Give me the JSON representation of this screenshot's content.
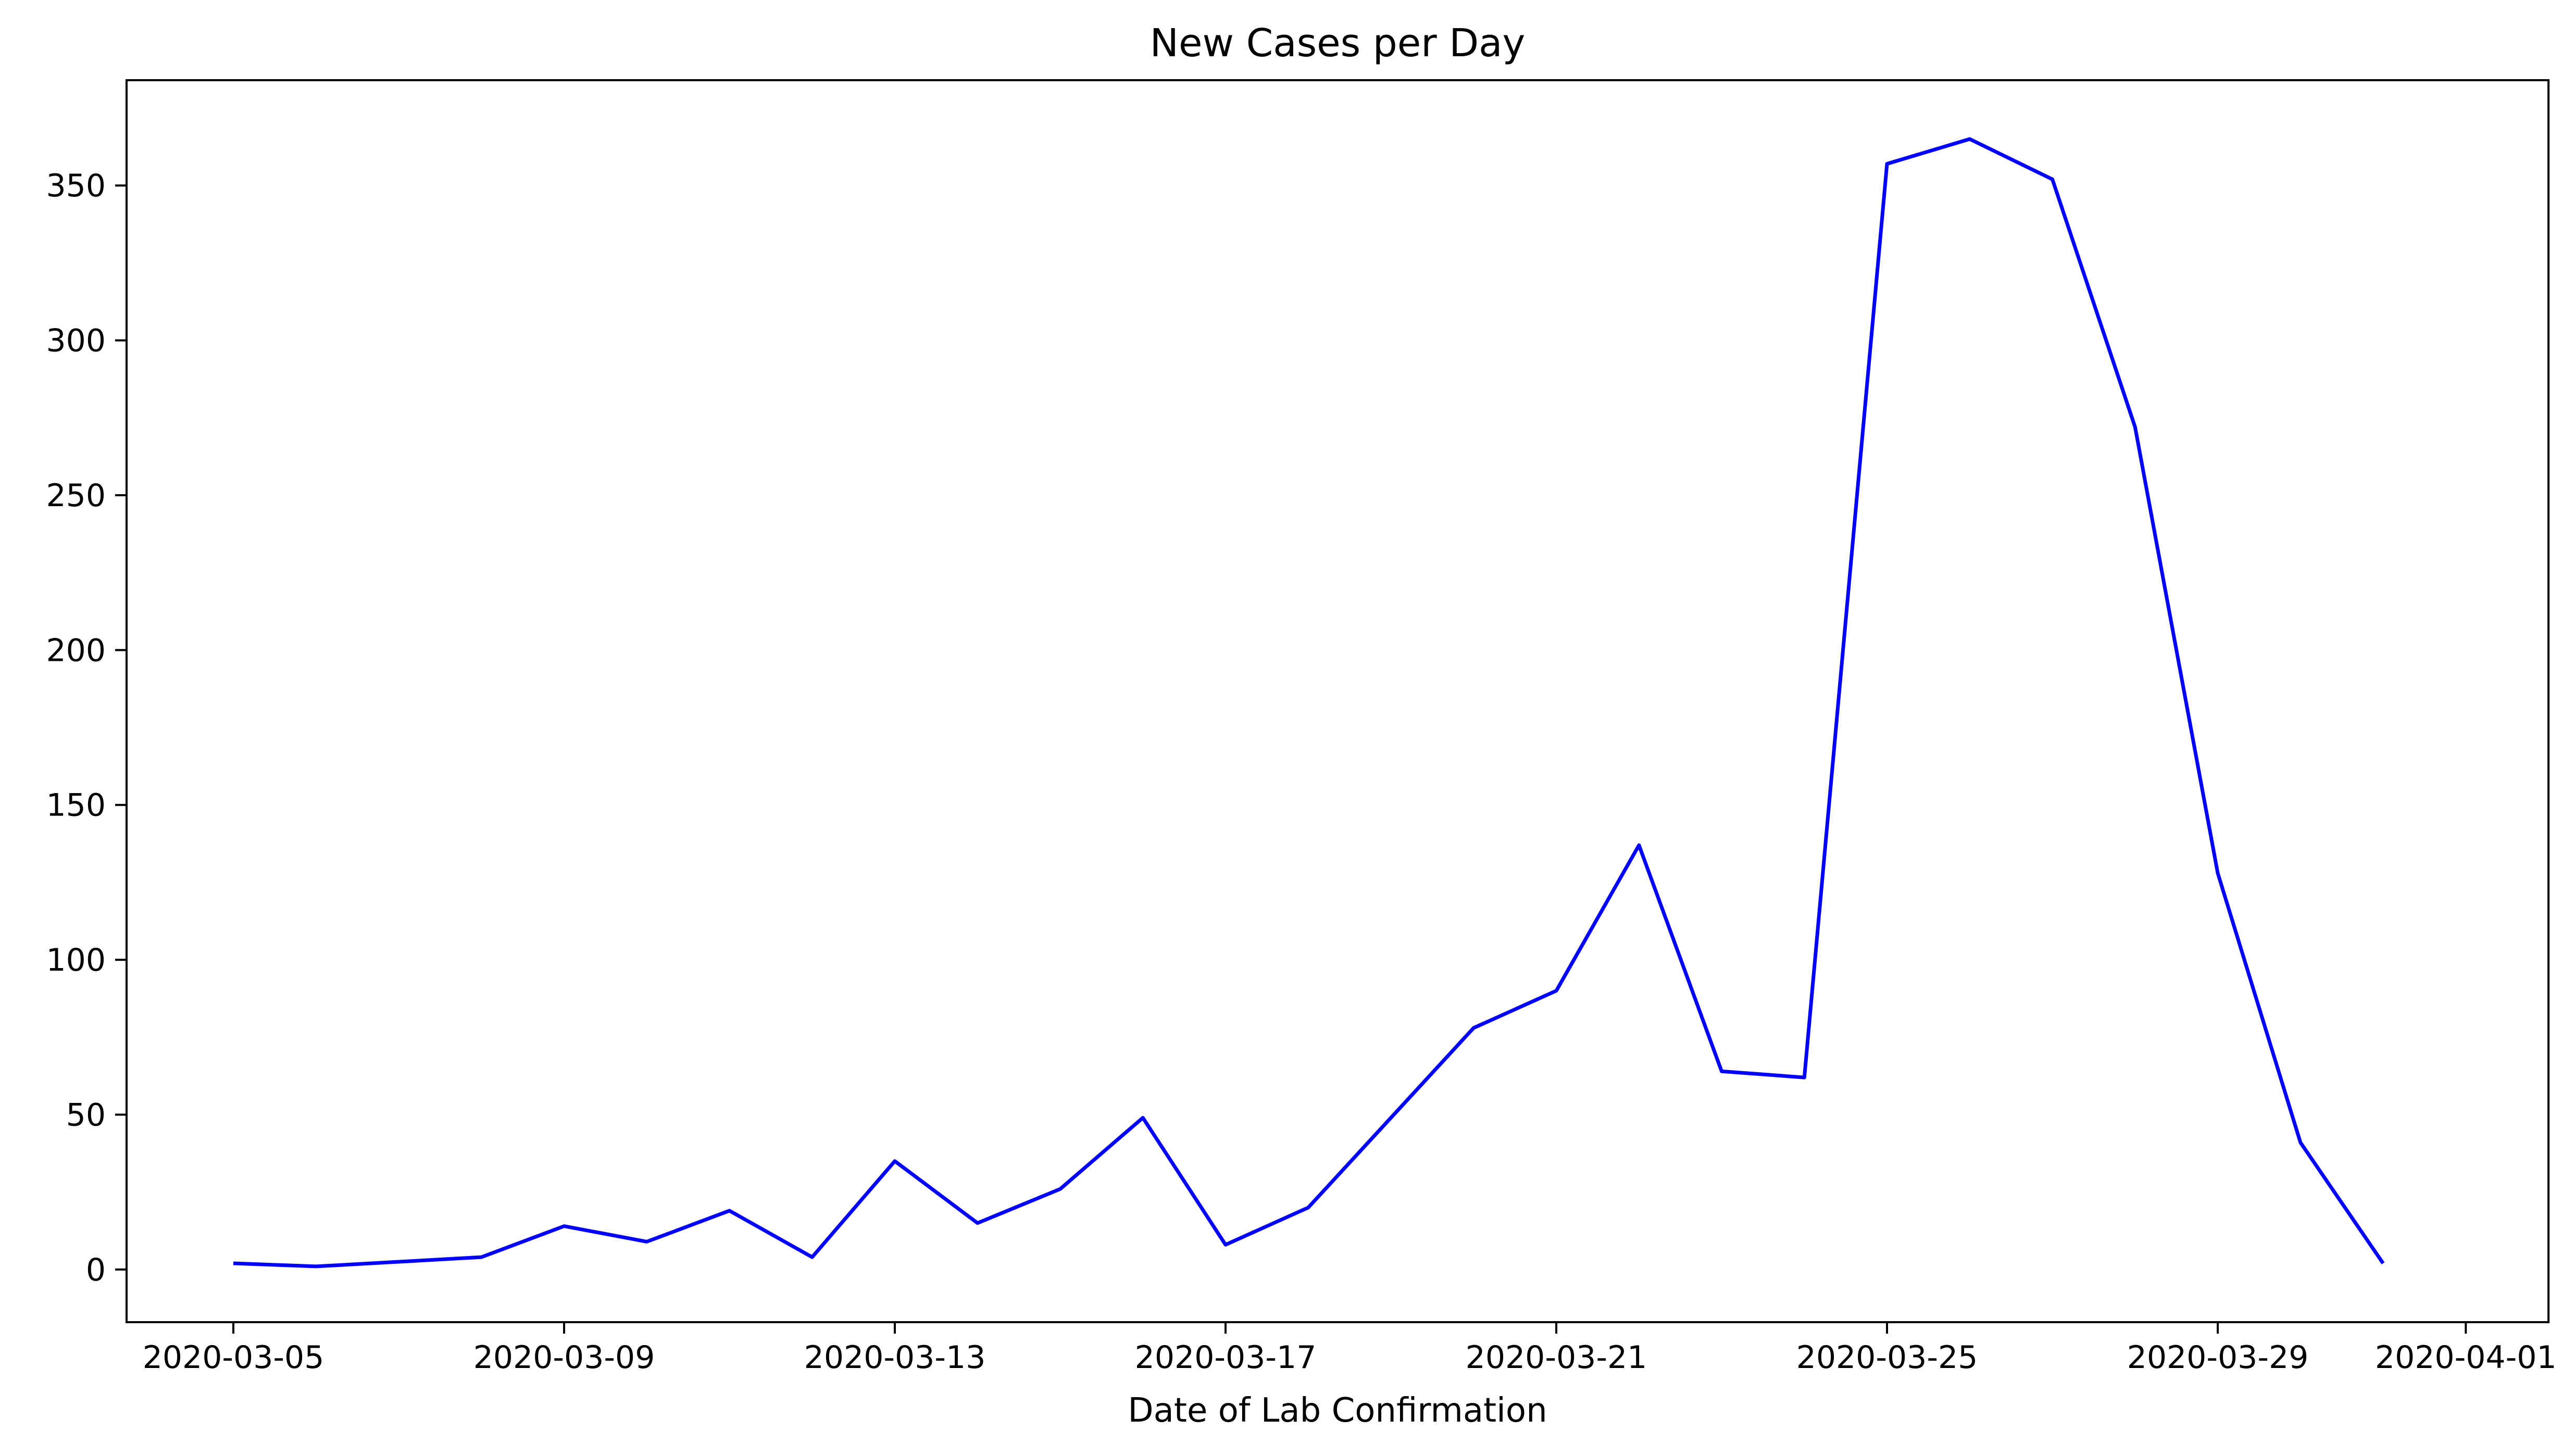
{
  "chart_data": {
    "type": "line",
    "title": "New Cases per Day",
    "xlabel": "Date of Lab Confirmation",
    "ylabel": "",
    "x_range": [
      "2020-03-03 17:00",
      "2020-04-02"
    ],
    "ylim": [
      -17,
      384
    ],
    "grid": false,
    "legend": "none",
    "x_ticks": [
      {
        "date": "2020-03-05",
        "label": "2020-03-05"
      },
      {
        "date": "2020-03-09",
        "label": "2020-03-09"
      },
      {
        "date": "2020-03-13",
        "label": "2020-03-13"
      },
      {
        "date": "2020-03-17",
        "label": "2020-03-17"
      },
      {
        "date": "2020-03-21",
        "label": "2020-03-21"
      },
      {
        "date": "2020-03-25",
        "label": "2020-03-25"
      },
      {
        "date": "2020-03-29",
        "label": "2020-03-29"
      },
      {
        "date": "2020-04-01",
        "label": "2020-04-01"
      }
    ],
    "y_ticks": [
      0,
      50,
      100,
      150,
      200,
      250,
      300,
      350
    ],
    "series": [
      {
        "color": "#0000ff",
        "points": [
          [
            "2020-03-05",
            2
          ],
          [
            "2020-03-06",
            1
          ],
          [
            "2020-03-08",
            4
          ],
          [
            "2020-03-09",
            14
          ],
          [
            "2020-03-10",
            9
          ],
          [
            "2020-03-11",
            19
          ],
          [
            "2020-03-12",
            4
          ],
          [
            "2020-03-13",
            35
          ],
          [
            "2020-03-14",
            15
          ],
          [
            "2020-03-15",
            26
          ],
          [
            "2020-03-16",
            49
          ],
          [
            "2020-03-17",
            8
          ],
          [
            "2020-03-18",
            20
          ],
          [
            "2020-03-20",
            78
          ],
          [
            "2020-03-21",
            90
          ],
          [
            "2020-03-22",
            137
          ],
          [
            "2020-03-23",
            64
          ],
          [
            "2020-03-24",
            62
          ],
          [
            "2020-03-25",
            357
          ],
          [
            "2020-03-26",
            365
          ],
          [
            "2020-03-27",
            352
          ],
          [
            "2020-03-28",
            272
          ],
          [
            "2020-03-29",
            128
          ],
          [
            "2020-03-30",
            41
          ],
          [
            "2020-03-31",
            2
          ]
        ]
      }
    ]
  }
}
